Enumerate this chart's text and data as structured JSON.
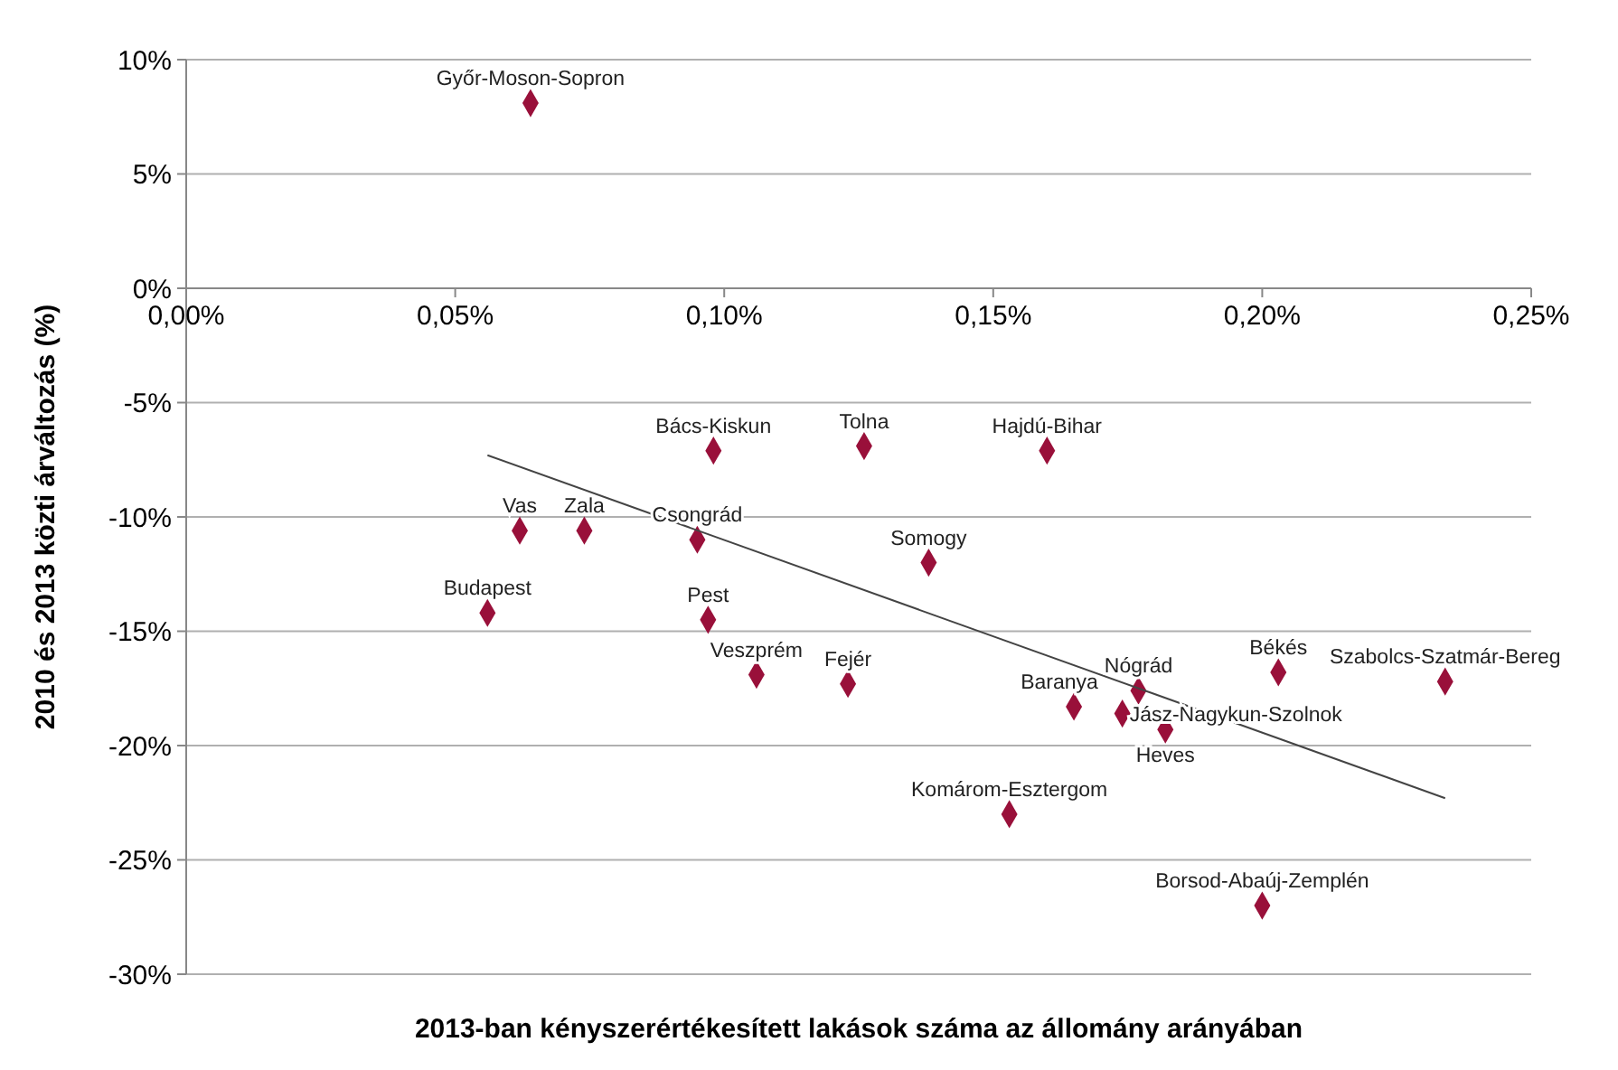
{
  "chart_data": {
    "type": "scatter",
    "xlabel": "2013-ban kényszerértékesített lakások száma az állomány arányában",
    "ylabel": "2010 és 2013 közti árváltozás (%)",
    "xlim": [
      0,
      0.25
    ],
    "xticks": [
      {
        "value": 0,
        "label": "0,00%"
      },
      {
        "value": 0.05,
        "label": "0,05%"
      },
      {
        "value": 0.1,
        "label": "0,10%"
      },
      {
        "value": 0.15,
        "label": "0,15%"
      },
      {
        "value": 0.2,
        "label": "0,20%"
      },
      {
        "value": 0.25,
        "label": "0,25%"
      }
    ],
    "ylim": [
      -30,
      10
    ],
    "yticks": [
      {
        "value": -30,
        "label": "-30%"
      },
      {
        "value": -25,
        "label": "-25%"
      },
      {
        "value": -20,
        "label": "-20%"
      },
      {
        "value": -15,
        "label": "-15%"
      },
      {
        "value": -10,
        "label": "-10%"
      },
      {
        "value": -5,
        "label": "-5%"
      },
      {
        "value": 0,
        "label": "0%"
      },
      {
        "value": 5,
        "label": "5%"
      },
      {
        "value": 10,
        "label": "10%"
      }
    ],
    "grid": "y",
    "marker": "diamond",
    "series": [
      {
        "color": "#99103a",
        "x": [
          0.064,
          0.062,
          0.074,
          0.056,
          0.098,
          0.095,
          0.097,
          0.106,
          0.126,
          0.123,
          0.138,
          0.16,
          0.153,
          0.165,
          0.174,
          0.177,
          0.182,
          0.203,
          0.2,
          0.234
        ],
        "values": [
          8.1,
          -10.6,
          -10.6,
          -14.2,
          -7.1,
          -11.0,
          -14.5,
          -16.9,
          -6.9,
          -17.3,
          -12.0,
          -7.1,
          -23.0,
          -18.3,
          -18.6,
          -17.6,
          -19.3,
          -16.8,
          -27.0,
          -17.2
        ]
      },
      {
        "type": "line",
        "color": "#444444",
        "marker": "none",
        "x": [
          0.056,
          0.234
        ],
        "values": [
          -7.3,
          -22.3
        ]
      }
    ],
    "annotations": [
      {
        "text": "Győr-Moson-Sopron",
        "x": 0.064,
        "y": 8.1
      },
      {
        "text": "Vas",
        "x": 0.062,
        "y": -10.6
      },
      {
        "text": "Zala",
        "x": 0.074,
        "y": -10.6
      },
      {
        "text": "Budapest",
        "x": 0.056,
        "y": -14.2
      },
      {
        "text": "Bács-Kiskun",
        "x": 0.098,
        "y": -7.1
      },
      {
        "text": "Csongrád",
        "x": 0.095,
        "y": -11.0
      },
      {
        "text": "Pest",
        "x": 0.097,
        "y": -14.5
      },
      {
        "text": "Veszprém",
        "x": 0.106,
        "y": -16.9
      },
      {
        "text": "Tolna",
        "x": 0.126,
        "y": -6.9
      },
      {
        "text": "Fejér",
        "x": 0.123,
        "y": -17.3
      },
      {
        "text": "Somogy",
        "x": 0.138,
        "y": -12.0
      },
      {
        "text": "Hajdú-Bihar",
        "x": 0.16,
        "y": -7.1
      },
      {
        "text": "Komárom-Esztergom",
        "x": 0.153,
        "y": -23.0
      },
      {
        "text": "Baranya",
        "x": 0.165,
        "y": -18.3
      },
      {
        "text": "Jász-Nagykun-Szolnok",
        "x": 0.174,
        "y": -18.6
      },
      {
        "text": "Nógrád",
        "x": 0.177,
        "y": -17.6
      },
      {
        "text": "Heves",
        "x": 0.182,
        "y": -19.3
      },
      {
        "text": "Békés",
        "x": 0.203,
        "y": -16.8
      },
      {
        "text": "Borsod-Abaúj-Zemplén",
        "x": 0.2,
        "y": -27.0
      },
      {
        "text": "Szabolcs-Szatmár-Bereg",
        "x": 0.234,
        "y": -17.2
      }
    ]
  }
}
